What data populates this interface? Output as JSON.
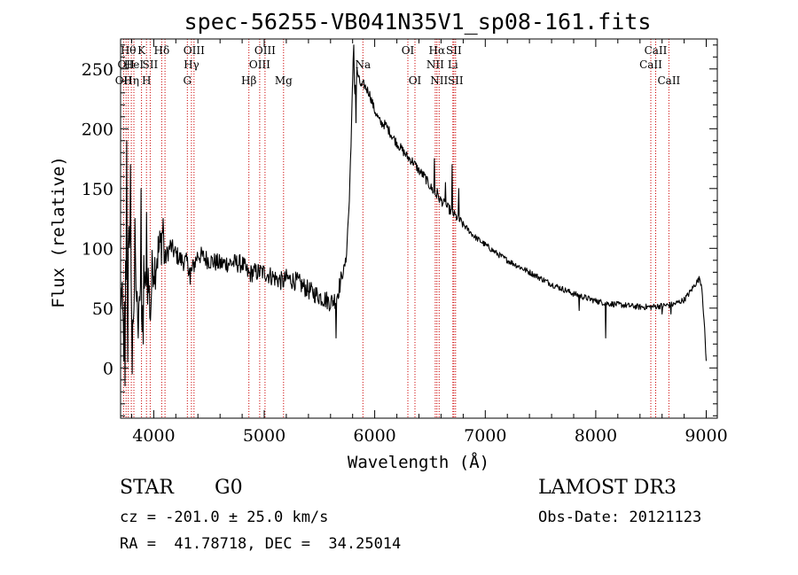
{
  "chart_data": {
    "type": "line",
    "title": "spec-56255-VB041N35V1_sp08-161.fits",
    "xlabel": "Wavelength (Å)",
    "ylabel": "Flux (relative)",
    "xlim": [
      3700,
      9100
    ],
    "ylim": [
      -42,
      275
    ],
    "xticks": [
      4000,
      5000,
      6000,
      7000,
      8000,
      9000
    ],
    "yticks": [
      0,
      50,
      100,
      150,
      200,
      250
    ],
    "series": [
      {
        "name": "flux",
        "color": "#000000",
        "anchors": [
          [
            3710,
            60
          ],
          [
            3730,
            20
          ],
          [
            3745,
            75
          ],
          [
            3760,
            40
          ],
          [
            3775,
            130
          ],
          [
            3790,
            80
          ],
          [
            3810,
            30
          ],
          [
            3830,
            85
          ],
          [
            3850,
            50
          ],
          [
            3870,
            65
          ],
          [
            3890,
            30
          ],
          [
            3910,
            80
          ],
          [
            3930,
            60
          ],
          [
            3950,
            75
          ],
          [
            3970,
            45
          ],
          [
            3990,
            90
          ],
          [
            4010,
            85
          ],
          [
            4030,
            95
          ],
          [
            4060,
            100
          ],
          [
            4080,
            115
          ],
          [
            4100,
            90
          ],
          [
            4150,
            102
          ],
          [
            4200,
            95
          ],
          [
            4250,
            90
          ],
          [
            4300,
            88
          ],
          [
            4340,
            80
          ],
          [
            4400,
            95
          ],
          [
            4500,
            90
          ],
          [
            4600,
            87
          ],
          [
            4700,
            88
          ],
          [
            4800,
            87
          ],
          [
            4860,
            78
          ],
          [
            4900,
            80
          ],
          [
            5000,
            80
          ],
          [
            5100,
            75
          ],
          [
            5170,
            72
          ],
          [
            5200,
            75
          ],
          [
            5300,
            72
          ],
          [
            5400,
            65
          ],
          [
            5500,
            60
          ],
          [
            5600,
            55
          ],
          [
            5650,
            58
          ],
          [
            5700,
            75
          ],
          [
            5740,
            90
          ],
          [
            5770,
            140
          ],
          [
            5790,
            205
          ],
          [
            5805,
            255
          ],
          [
            5820,
            232
          ],
          [
            5840,
            248
          ],
          [
            5860,
            240
          ],
          [
            5880,
            235
          ],
          [
            5900,
            237
          ],
          [
            5950,
            230
          ],
          [
            6000,
            215
          ],
          [
            6050,
            205
          ],
          [
            6100,
            203
          ],
          [
            6150,
            195
          ],
          [
            6200,
            188
          ],
          [
            6250,
            182
          ],
          [
            6300,
            176
          ],
          [
            6350,
            172
          ],
          [
            6400,
            165
          ],
          [
            6450,
            160
          ],
          [
            6500,
            152
          ],
          [
            6550,
            145
          ],
          [
            6600,
            140
          ],
          [
            6650,
            135
          ],
          [
            6700,
            130
          ],
          [
            6750,
            125
          ],
          [
            6800,
            120
          ],
          [
            6850,
            115
          ],
          [
            6900,
            110
          ],
          [
            7000,
            103
          ],
          [
            7100,
            96
          ],
          [
            7200,
            90
          ],
          [
            7300,
            85
          ],
          [
            7400,
            80
          ],
          [
            7500,
            75
          ],
          [
            7600,
            70
          ],
          [
            7700,
            66
          ],
          [
            7800,
            62
          ],
          [
            7900,
            59
          ],
          [
            8000,
            56
          ],
          [
            8100,
            54
          ],
          [
            8200,
            53
          ],
          [
            8300,
            52
          ],
          [
            8400,
            51
          ],
          [
            8500,
            51
          ],
          [
            8600,
            52
          ],
          [
            8700,
            53
          ],
          [
            8800,
            57
          ],
          [
            8850,
            63
          ],
          [
            8900,
            70
          ],
          [
            8940,
            75
          ],
          [
            8960,
            68
          ],
          [
            8980,
            40
          ],
          [
            9000,
            5
          ]
        ],
        "spikes": [
          [
            3755,
            190
          ],
          [
            3740,
            -15
          ],
          [
            3765,
            5
          ],
          [
            3790,
            170
          ],
          [
            3805,
            -5
          ],
          [
            3830,
            125
          ],
          [
            3860,
            25
          ],
          [
            3885,
            150
          ],
          [
            3905,
            20
          ],
          [
            3935,
            130
          ],
          [
            4085,
            125
          ],
          [
            4330,
            70
          ],
          [
            5650,
            25
          ],
          [
            5808,
            270
          ],
          [
            5830,
            205
          ],
          [
            6540,
            175
          ],
          [
            6563,
            150
          ],
          [
            6640,
            155
          ],
          [
            6700,
            170
          ],
          [
            6760,
            150
          ],
          [
            7850,
            48
          ],
          [
            8010,
            57
          ],
          [
            8090,
            25
          ],
          [
            8600,
            45
          ],
          [
            8680,
            45
          ]
        ]
      }
    ],
    "lines": [
      {
        "w": 3727,
        "label": "OII",
        "row": 3
      },
      {
        "w": 3750,
        "label": "OII",
        "row": 2
      },
      {
        "w": 3770,
        "label": "Hθ",
        "row": 1
      },
      {
        "w": 3797,
        "label": "Hη",
        "row": 3
      },
      {
        "w": 3820,
        "label": "HeI",
        "row": 2
      },
      {
        "w": 3889,
        "label": "K",
        "row": 1
      },
      {
        "w": 3934,
        "label": "H",
        "row": 3
      },
      {
        "w": 3968,
        "label": "SII",
        "row": 2
      },
      {
        "w": 4072,
        "label": "Hδ",
        "row": 1
      },
      {
        "w": 4102,
        "label": "",
        "row": 0
      },
      {
        "w": 4304,
        "label": "G",
        "row": 3
      },
      {
        "w": 4341,
        "label": "Hγ",
        "row": 2
      },
      {
        "w": 4364,
        "label": "OIII",
        "row": 1
      },
      {
        "w": 4861,
        "label": "Hβ",
        "row": 3
      },
      {
        "w": 4959,
        "label": "OIII",
        "row": 2
      },
      {
        "w": 5007,
        "label": "OIII",
        "row": 1
      },
      {
        "w": 5175,
        "label": "Mg",
        "row": 3
      },
      {
        "w": 5893,
        "label": "Na",
        "row": 2
      },
      {
        "w": 6300,
        "label": "OI",
        "row": 1
      },
      {
        "w": 6364,
        "label": "OI",
        "row": 3
      },
      {
        "w": 6548,
        "label": "NII",
        "row": 2
      },
      {
        "w": 6563,
        "label": "Hα",
        "row": 1
      },
      {
        "w": 6583,
        "label": "NII",
        "row": 3
      },
      {
        "w": 6707,
        "label": "Li",
        "row": 2
      },
      {
        "w": 6716,
        "label": "SII",
        "row": 1
      },
      {
        "w": 6731,
        "label": "SII",
        "row": 3
      },
      {
        "w": 8498,
        "label": "CaII",
        "row": 2
      },
      {
        "w": 8542,
        "label": "CaII",
        "row": 1
      },
      {
        "w": 8662,
        "label": "CaII",
        "row": 3
      }
    ]
  },
  "info": {
    "class_label": "STAR",
    "subclass": "G0",
    "survey": "LAMOST DR3",
    "redshift": "cz = -201.0 ± 25.0 km/s",
    "obs_date": "Obs-Date: 20121123",
    "coords": "RA =  41.78718, DEC =  34.25014"
  }
}
